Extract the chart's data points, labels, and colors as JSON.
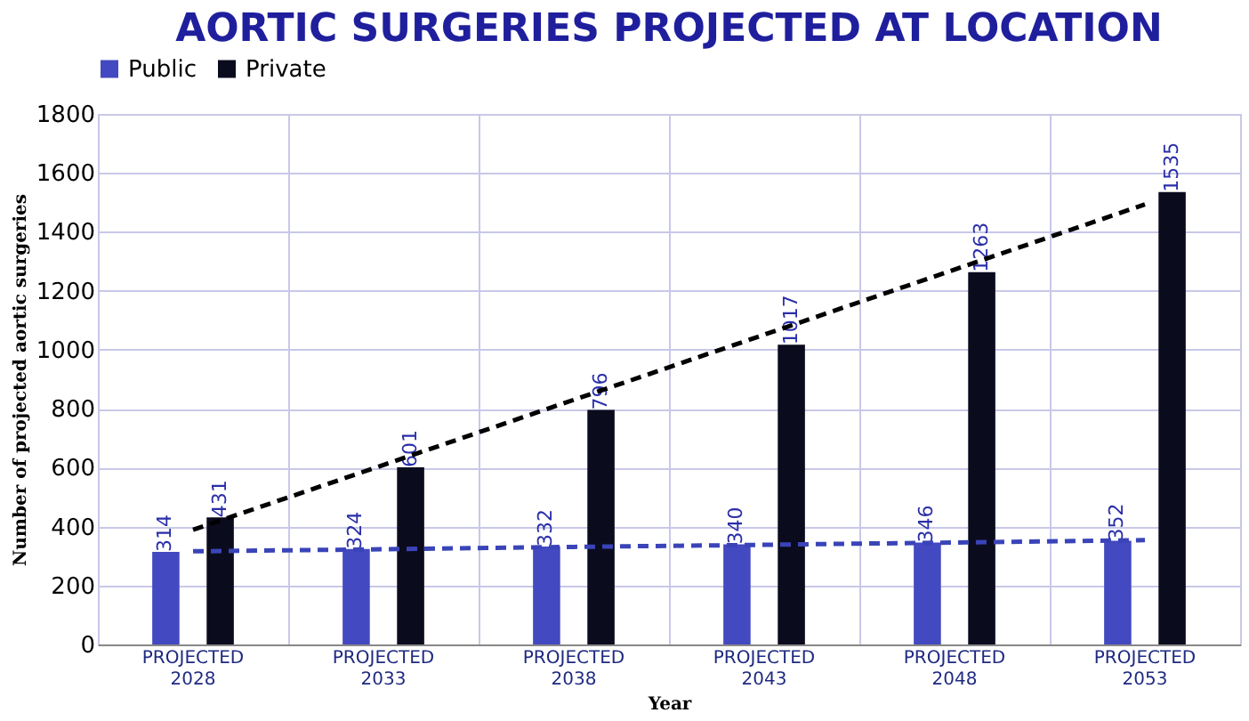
{
  "chart_data": {
    "type": "bar",
    "title": "AORTIC SURGERIES PROJECTED AT LOCATION",
    "xlabel": "Year",
    "ylabel": "Number of projected aortic surgeries",
    "categories": [
      "PROJECTED 2028",
      "PROJECTED 2033",
      "PROJECTED 2038",
      "PROJECTED 2043",
      "PROJECTED 2048",
      "PROJECTED 2053"
    ],
    "series": [
      {
        "name": "Public",
        "color": "#4349c0",
        "values": [
          314,
          324,
          332,
          340,
          346,
          352
        ],
        "value_labels": [
          "314",
          "324",
          "332",
          "340",
          "346",
          "352"
        ]
      },
      {
        "name": "Private",
        "color": "#0b0b1e",
        "values": [
          431,
          601,
          796,
          1017,
          1263,
          1535
        ],
        "value_labels": [
          "431",
          "601",
          "796",
          "1017",
          "1263",
          "1535"
        ]
      },
      {
        "type": "line",
        "line_style": "dashed",
        "color": "#3a44b8",
        "values": [
          316,
          323,
          331,
          338,
          346,
          354
        ]
      },
      {
        "type": "line",
        "line_style": "dashed",
        "color": "#000000",
        "values": [
          389,
          609,
          830,
          1051,
          1272,
          1493
        ]
      }
    ],
    "ylim": [
      0,
      1800
    ],
    "yticks": [
      0,
      200,
      400,
      600,
      800,
      1000,
      1200,
      1400,
      1600,
      1800
    ],
    "grid": true,
    "legend": "top"
  }
}
